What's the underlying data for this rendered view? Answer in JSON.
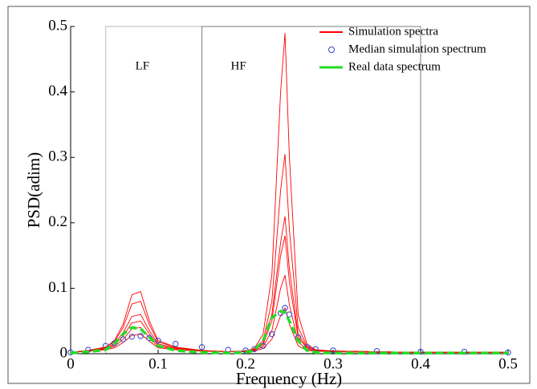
{
  "chart_data": {
    "type": "line",
    "x_label": "Frequency (Hz)",
    "y_label": "PSD(adim)",
    "xlim": [
      0,
      0.5
    ],
    "ylim": [
      0,
      0.5
    ],
    "xticks": [
      0,
      0.1,
      0.2,
      0.3,
      0.4,
      0.5
    ],
    "yticks": [
      0,
      0.1,
      0.2,
      0.3,
      0.4,
      0.5
    ],
    "bands": [
      {
        "label": "LF",
        "range": [
          0.04,
          0.15
        ],
        "color": "#c8c8c8"
      },
      {
        "label": "HF",
        "range": [
          0.15,
          0.4
        ],
        "color": "#999999"
      }
    ],
    "x": [
      0,
      0.02,
      0.04,
      0.05,
      0.06,
      0.07,
      0.08,
      0.09,
      0.1,
      0.12,
      0.15,
      0.18,
      0.2,
      0.21,
      0.22,
      0.23,
      0.24,
      0.245,
      0.25,
      0.26,
      0.27,
      0.28,
      0.3,
      0.35,
      0.4,
      0.45,
      0.5
    ],
    "series": [
      {
        "name": "Simulation spectra",
        "color": "#ff0000",
        "style": "line",
        "curves": [
          [
            0.002,
            0.005,
            0.01,
            0.02,
            0.045,
            0.09,
            0.095,
            0.05,
            0.02,
            0.01,
            0.005,
            0.003,
            0.004,
            0.008,
            0.03,
            0.12,
            0.4,
            0.49,
            0.3,
            0.06,
            0.015,
            0.006,
            0.004,
            0.003,
            0.002,
            0.002,
            0.002
          ],
          [
            0.002,
            0.005,
            0.01,
            0.018,
            0.04,
            0.076,
            0.08,
            0.044,
            0.018,
            0.01,
            0.005,
            0.003,
            0.004,
            0.007,
            0.02,
            0.08,
            0.25,
            0.305,
            0.19,
            0.04,
            0.012,
            0.006,
            0.004,
            0.003,
            0.002,
            0.002,
            0.002
          ],
          [
            0.002,
            0.005,
            0.009,
            0.015,
            0.032,
            0.057,
            0.06,
            0.035,
            0.015,
            0.009,
            0.005,
            0.003,
            0.004,
            0.006,
            0.016,
            0.06,
            0.17,
            0.21,
            0.13,
            0.03,
            0.01,
            0.005,
            0.004,
            0.003,
            0.002,
            0.002,
            0.002
          ],
          [
            0.002,
            0.004,
            0.008,
            0.013,
            0.027,
            0.047,
            0.05,
            0.03,
            0.013,
            0.008,
            0.004,
            0.003,
            0.004,
            0.006,
            0.014,
            0.05,
            0.15,
            0.18,
            0.11,
            0.025,
            0.009,
            0.005,
            0.004,
            0.003,
            0.002,
            0.002,
            0.002
          ],
          [
            0.002,
            0.004,
            0.007,
            0.011,
            0.022,
            0.038,
            0.04,
            0.025,
            0.011,
            0.007,
            0.004,
            0.003,
            0.003,
            0.005,
            0.011,
            0.035,
            0.1,
            0.12,
            0.075,
            0.018,
            0.007,
            0.004,
            0.003,
            0.003,
            0.002,
            0.002,
            0.002
          ],
          [
            0.002,
            0.004,
            0.006,
            0.009,
            0.017,
            0.028,
            0.03,
            0.019,
            0.009,
            0.006,
            0.004,
            0.003,
            0.003,
            0.004,
            0.008,
            0.022,
            0.058,
            0.07,
            0.045,
            0.012,
            0.005,
            0.004,
            0.003,
            0.002,
            0.002,
            0.002,
            0.002
          ]
        ]
      },
      {
        "name": "Median simulation spectrum",
        "color": "#3344cc",
        "style": "circle",
        "values": [
          0.002,
          0.006,
          0.012,
          0.016,
          0.022,
          0.026,
          0.027,
          0.024,
          0.02,
          0.015,
          0.01,
          0.006,
          0.005,
          0.007,
          0.012,
          0.03,
          0.062,
          0.07,
          0.06,
          0.025,
          0.01,
          0.007,
          0.005,
          0.004,
          0.003,
          0.003,
          0.002
        ]
      },
      {
        "name": "Real data spectrum",
        "color": "#22dd22",
        "style": "dash",
        "values": [
          0.001,
          0.003,
          0.006,
          0.015,
          0.03,
          0.04,
          0.038,
          0.025,
          0.012,
          0.005,
          0.002,
          0.001,
          0.002,
          0.005,
          0.02,
          0.055,
          0.065,
          0.063,
          0.05,
          0.02,
          0.005,
          0.002,
          0.001,
          0.001,
          0.001,
          0.001,
          0.001
        ]
      }
    ]
  }
}
